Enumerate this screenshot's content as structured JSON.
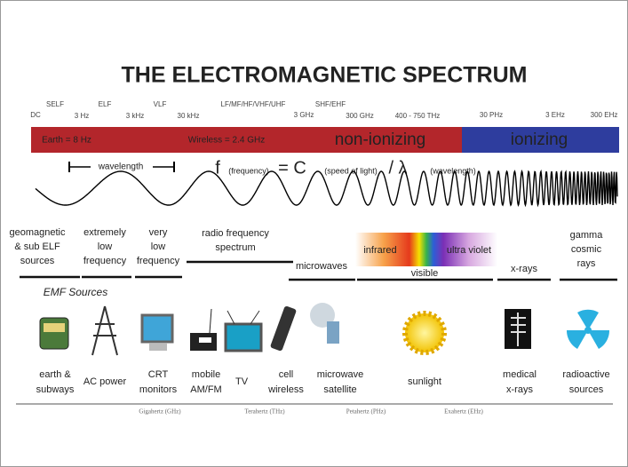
{
  "title": "THE ELECTROMAGNETIC SPECTRUM",
  "frequency_labels": [
    "DC",
    "SELF",
    "3 Hz",
    "ELF",
    "3 kHz",
    "VLF",
    "30 kHz",
    "LF/MF/HF/VHF/UHF",
    "3 GHz",
    "SHF/EHF",
    "300 GHz",
    "400 - 750 THz",
    "30 PHz",
    "3 EHz",
    "300 EHz"
  ],
  "bar": {
    "earth": "Earth = 8 Hz",
    "wireless": "Wireless = 2.4 GHz",
    "non_ionizing": "non-ionizing",
    "ionizing": "ionizing"
  },
  "wavelength": "wavelength",
  "formula": {
    "f": "f",
    "f_sub": "(frequency)",
    "c": "= C",
    "c_sub": "(speed of light)",
    "lambda": "/ λ",
    "lambda_sub": "(wavelength)"
  },
  "bands": [
    [
      "geomagnetic",
      "& sub ELF",
      "sources"
    ],
    [
      "extremely",
      "low",
      "frequency"
    ],
    [
      "very",
      "low",
      "frequency"
    ],
    [
      "radio frequency",
      "spectrum"
    ],
    [
      "microwaves"
    ],
    [
      "infrared"
    ],
    [
      "visible"
    ],
    [
      "ultra violet"
    ],
    [
      "x-rays"
    ],
    [
      "gamma",
      "cosmic",
      "rays"
    ]
  ],
  "emf_heading": "EMF Sources",
  "sources": [
    [
      "earth &",
      "subways"
    ],
    [
      "AC power"
    ],
    [
      "CRT",
      "monitors"
    ],
    [
      "mobile",
      "AM/FM"
    ],
    [
      "TV"
    ],
    [
      "cell",
      "wireless"
    ],
    [
      "microwave",
      "satellite"
    ],
    [
      "sunlight"
    ],
    [
      "medical",
      "x-rays"
    ],
    [
      "radioactive",
      "sources"
    ]
  ],
  "footer": [
    "Gigahertz (GHz)",
    "Terahertz (THz)",
    "Petahertz (PHz)",
    "Exahertz (EHz)"
  ]
}
